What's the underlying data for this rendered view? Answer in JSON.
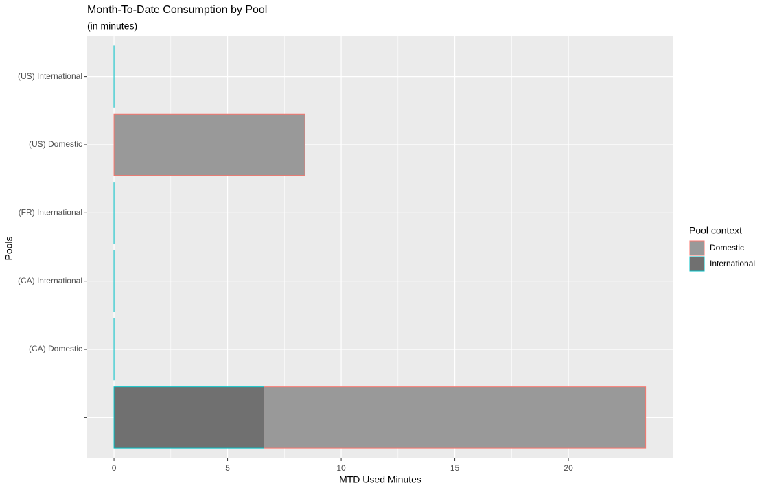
{
  "chart_data": {
    "type": "bar",
    "orientation": "horizontal",
    "stacked": true,
    "title": "Month-To-Date Consumption by Pool",
    "subtitle": "(in minutes)",
    "x_label": "MTD Used Minutes",
    "y_label": "Pools",
    "legend_title": "Pool context",
    "categories": [
      null,
      "(CA) Domestic",
      "(CA) International",
      "(FR) International",
      "(US) Domestic",
      "(US) International"
    ],
    "series": [
      {
        "name": "Domestic",
        "color": "#999999",
        "outline": "#F8766D",
        "values": [
          16.8,
          null,
          null,
          null,
          8.4,
          null
        ]
      },
      {
        "name": "International",
        "color": "#707070",
        "outline": "#00BFC4",
        "values": [
          6.6,
          0,
          0,
          0,
          null,
          0
        ]
      }
    ],
    "xlim": [
      -1.18,
      24.62
    ],
    "xticks": [
      0,
      5,
      10,
      15,
      20
    ],
    "grid": true,
    "legend": "right"
  }
}
